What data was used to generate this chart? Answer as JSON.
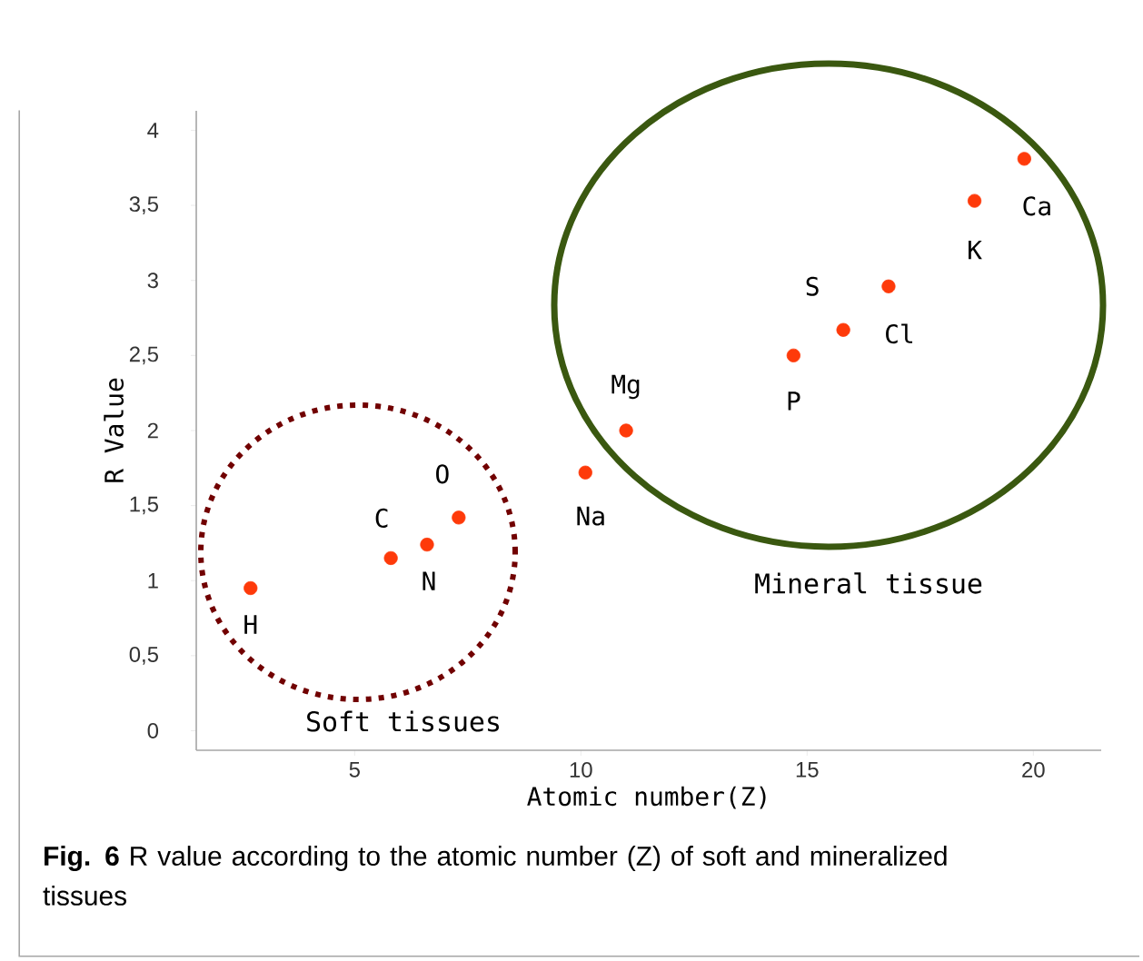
{
  "chart_data": {
    "type": "scatter",
    "xlabel": "Atomic number(Z)",
    "ylabel": "R Value",
    "x": [
      2.7,
      5.8,
      6.6,
      7.3,
      10.1,
      11.0,
      14.7,
      15.8,
      16.8,
      18.7,
      19.8
    ],
    "values": [
      0.95,
      1.15,
      1.24,
      1.42,
      1.72,
      2.0,
      2.5,
      2.67,
      2.96,
      3.53,
      3.81
    ],
    "color": "#fe3a0a",
    "grid": false,
    "xlim": [
      1.5,
      21.5
    ],
    "ylim": [
      -0.13,
      4.13
    ],
    "xticks": [
      5,
      10,
      15,
      20
    ],
    "yticks": [
      0,
      {
        "value": 0.5,
        "label": "0,5"
      },
      1,
      {
        "value": 1.5,
        "label": "1,5"
      },
      2,
      {
        "value": 2.5,
        "label": "2,5"
      },
      3,
      {
        "value": 3.5,
        "label": "3,5"
      },
      4
    ],
    "annotations": [
      {
        "text": "H",
        "x": 2.7,
        "y": 0.95
      },
      {
        "text": "C",
        "x": 5.8,
        "y": 1.15
      },
      {
        "text": "N",
        "x": 6.6,
        "y": 1.24
      },
      {
        "text": "O",
        "x": 7.3,
        "y": 1.42
      },
      {
        "text": "Na",
        "x": 10.1,
        "y": 1.72
      },
      {
        "text": "Mg",
        "x": 11.0,
        "y": 2.0
      },
      {
        "text": "P",
        "x": 14.7,
        "y": 2.5
      },
      {
        "text": "S",
        "x": 15.8,
        "y": 2.67
      },
      {
        "text": "Cl",
        "x": 16.8,
        "y": 2.96
      },
      {
        "text": "K",
        "x": 18.7,
        "y": 3.53
      },
      {
        "text": "Ca",
        "x": 19.8,
        "y": 3.81
      },
      "Soft tissues",
      "Mineral tissue",
      "**Fig. 6** R value according to the atomic number (Z) of soft and mineralized tissues"
    ]
  }
}
